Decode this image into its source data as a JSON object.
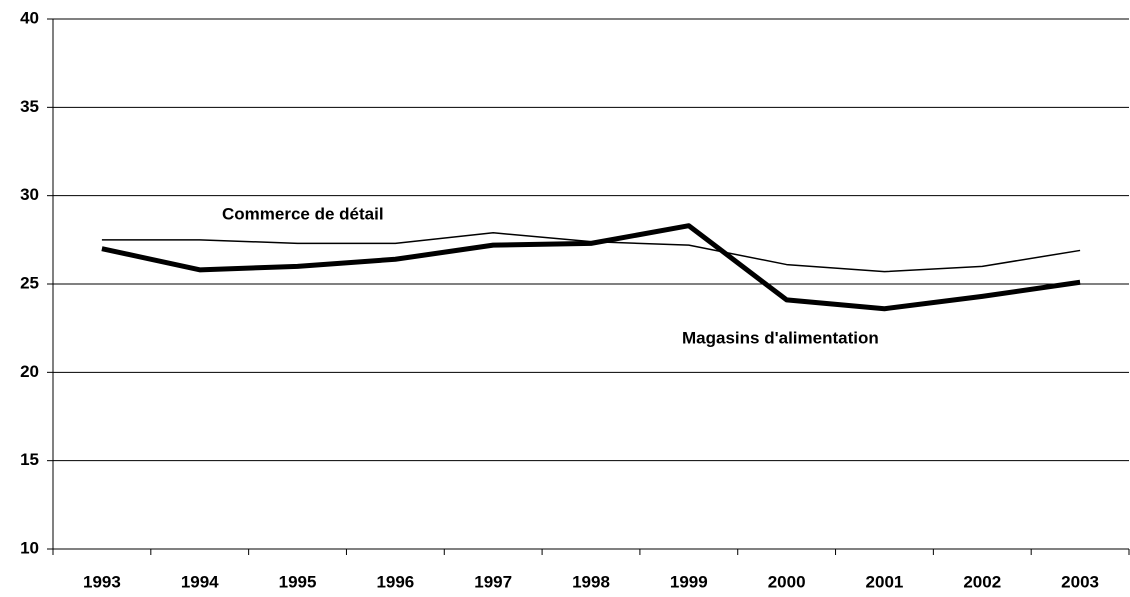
{
  "chart_data": {
    "type": "line",
    "categories": [
      "1993",
      "1994",
      "1995",
      "1996",
      "1997",
      "1998",
      "1999",
      "2000",
      "2001",
      "2002",
      "2003"
    ],
    "series": [
      {
        "name": "Commerce de détail",
        "color": "#000000",
        "values": [
          27.5,
          27.5,
          27.3,
          27.3,
          27.9,
          27.4,
          27.2,
          26.1,
          25.7,
          26.0,
          26.9
        ]
      },
      {
        "name": "Magasins d'alimentation",
        "color": "#000000",
        "values": [
          27.0,
          25.8,
          26.0,
          26.4,
          27.2,
          27.3,
          28.3,
          24.1,
          23.6,
          24.3,
          25.1
        ]
      }
    ],
    "ylim": [
      10,
      40
    ],
    "yticks": [
      10,
      15,
      20,
      25,
      30,
      35,
      40
    ],
    "grid": true
  }
}
